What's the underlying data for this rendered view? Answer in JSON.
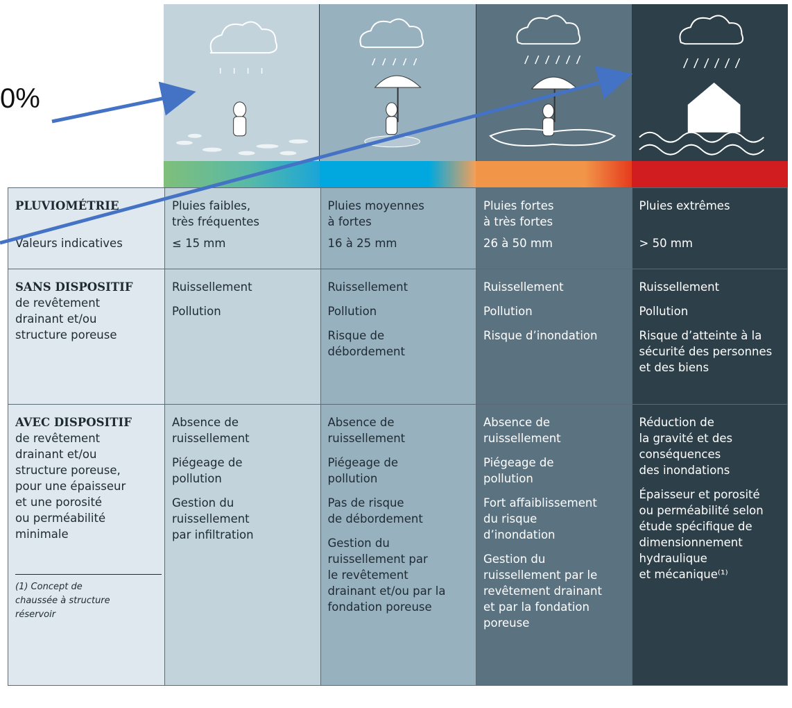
{
  "annotation": {
    "percent_fragment": "0%"
  },
  "columns": [
    {
      "id": "faibles",
      "header_lines": [
        "Pluies faibles,",
        "très fréquentes"
      ],
      "value": "≤ 15 mm",
      "sans": [
        "Ruissellement",
        "Pollution"
      ],
      "avec": [
        "Absence de\nruissellement",
        "Piégeage de\npollution",
        "Gestion du\nruissellement\npar infiltration"
      ]
    },
    {
      "id": "moyennes",
      "header_lines": [
        "Pluies moyennes",
        "à fortes"
      ],
      "value": "16 à 25 mm",
      "sans": [
        "Ruissellement",
        "Pollution",
        "Risque de\ndébordement"
      ],
      "avec": [
        "Absence de\nruissellement",
        "Piégeage de\npollution",
        "Pas de risque\nde débordement",
        "Gestion du\nruissellement par\nle revêtement\ndrainant et/ou par la\nfondation poreuse"
      ]
    },
    {
      "id": "fortes",
      "header_lines": [
        "Pluies fortes",
        "à très fortes"
      ],
      "value": "26 à 50 mm",
      "sans": [
        "Ruissellement",
        "Pollution",
        "Risque d’inondation"
      ],
      "avec": [
        "Absence de\nruissellement",
        "Piégeage de\npollution",
        "Fort affaiblissement\ndu risque\nd’inondation",
        "Gestion du\nruissellement par le\nrevêtement drainant\net par la fondation\nporeuse"
      ]
    },
    {
      "id": "extremes",
      "header_lines": [
        "Pluies extrêmes",
        ""
      ],
      "value": "> 50 mm",
      "sans": [
        "Ruissellement",
        "Pollution",
        "Risque d’atteinte à la\nsécurité des personnes\net des biens"
      ],
      "avec": [
        "Réduction de\nla gravité et des\nconséquences\ndes inondations",
        "Épaisseur et porosité\nou perméabilité selon\nétude spécifique de\ndimensionnement\nhydraulique\net mécanique⁽¹⁾"
      ]
    }
  ],
  "rows": {
    "pluvio_label": "PLUVIOMÉTRIE",
    "valeurs_label": "Valeurs indicatives",
    "sans_title": "SANS DISPOSITIF",
    "sans_sub": "de revêtement\ndrainant et/ou\nstructure poreuse",
    "avec_title": "AVEC DISPOSITIF",
    "avec_sub": "de revêtement\ndrainant et/ou\nstructure poreuse,\npour une épaisseur\net une porosité\nou perméabilité\nminimale",
    "footnote": "(1) Concept de\nchaussée à structure\nréservoir"
  },
  "colors": {
    "arrow": "#4472c4",
    "band_red": "#d11c20",
    "band_orange": "#f19548",
    "band_blue": "#00a8df",
    "band_green": "#7fbf7a"
  }
}
